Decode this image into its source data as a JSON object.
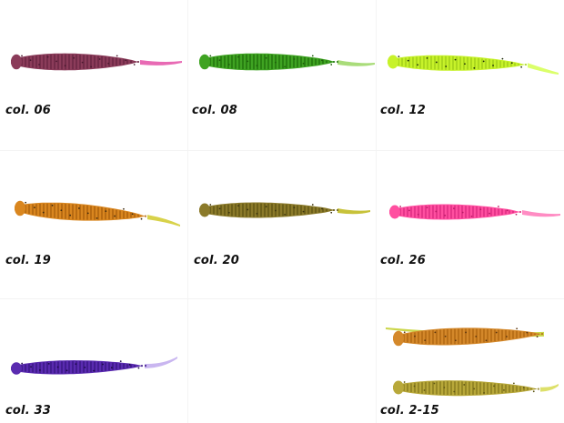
{
  "items": [
    {
      "label": "col. 06",
      "body": "#8b3c5a",
      "rib": "#6d2845",
      "tail": "#e86ab4",
      "speck": "#4b1a30",
      "variant": "pin"
    },
    {
      "label": "col. 08",
      "body": "#3fa322",
      "rib": "#24780f",
      "tail": "#a9dc7a",
      "speck": "#1f5c0c",
      "variant": "pin"
    },
    {
      "label": "col. 12",
      "body": "#c7f22a",
      "rib": "#a4d21b",
      "tail": "#dbff6a",
      "speck": "#1d2a0a",
      "variant": "pin"
    },
    {
      "label": "col. 19",
      "body": "#d9861f",
      "rib": "#b0650f",
      "tail": "#d8d24a",
      "speck": "#3d2a10",
      "variant": "pin"
    },
    {
      "label": "col. 20",
      "body": "#8b7a2a",
      "rib": "#665a17",
      "tail": "#c7c23a",
      "speck": "#3b3410",
      "variant": "pin"
    },
    {
      "label": "col. 26",
      "body": "#ff4fa0",
      "rib": "#e02f84",
      "tail": "#ff8cc3",
      "speck": "#b81c66",
      "variant": "pin"
    },
    {
      "label": "col. 33",
      "body": "#5a2bb0",
      "rib": "#3d1888",
      "tail": "#c9b6f0",
      "speck": "#1c0a45",
      "variant": "pin"
    },
    {
      "label": "col. 2-15",
      "body": "#c98a2c",
      "rib": "#a86b17",
      "tail": "#c9d43a",
      "speck": "#6b3f10",
      "variant": "pair"
    }
  ]
}
